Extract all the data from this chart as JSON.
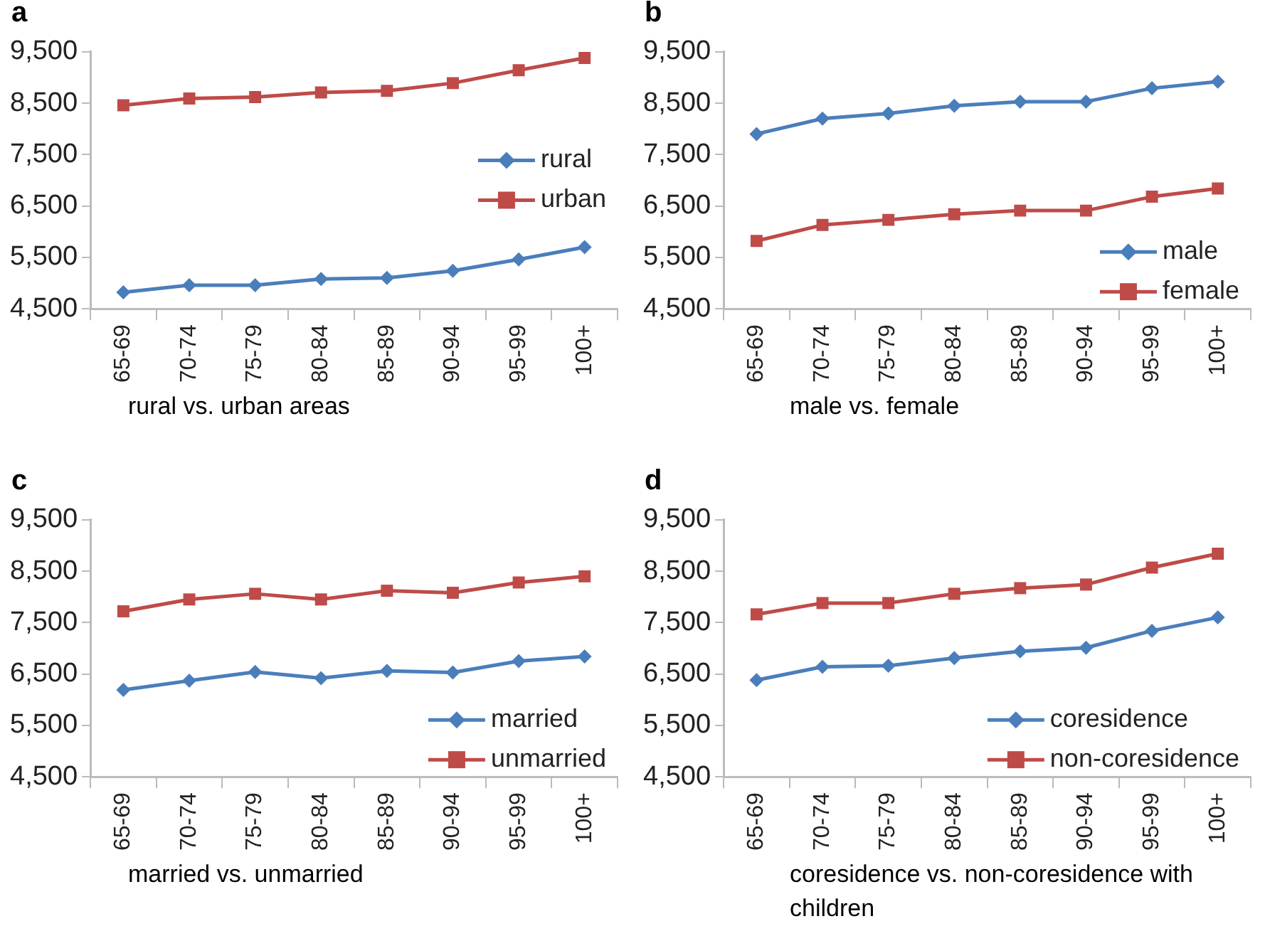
{
  "chart_data": [
    {
      "type": "line",
      "title": "a",
      "xlabel": "rural vs. urban areas",
      "categories": [
        "65-69",
        "70-74",
        "75-79",
        "80-84",
        "85-89",
        "90-94",
        "95-99",
        "100+"
      ],
      "ylim": [
        4500,
        9500
      ],
      "yticks": [
        {
          "value": 4500,
          "label": "4,500"
        },
        {
          "value": 5500,
          "label": "5,500"
        },
        {
          "value": 6500,
          "label": "6,500"
        },
        {
          "value": 7500,
          "label": "7,500"
        },
        {
          "value": 8500,
          "label": "8,500"
        },
        {
          "value": 9500,
          "label": "9,500"
        }
      ],
      "grid": false,
      "legend": "right",
      "series": [
        {
          "name": "rural",
          "color": "#4a7ebb",
          "marker": "diamond",
          "values": [
            4820,
            4960,
            4960,
            5080,
            5100,
            5240,
            5460,
            5700
          ]
        },
        {
          "name": "urban",
          "color": "#be4b48",
          "marker": "square",
          "values": [
            8460,
            8590,
            8620,
            8710,
            8740,
            8890,
            9140,
            9380
          ]
        }
      ]
    },
    {
      "type": "line",
      "title": "b",
      "xlabel": "male vs. female",
      "categories": [
        "65-69",
        "70-74",
        "75-79",
        "80-84",
        "85-89",
        "90-94",
        "95-99",
        "100+"
      ],
      "ylim": [
        4500,
        9500
      ],
      "yticks": [
        {
          "value": 4500,
          "label": "4,500"
        },
        {
          "value": 5500,
          "label": "5,500"
        },
        {
          "value": 6500,
          "label": "6,500"
        },
        {
          "value": 7500,
          "label": "7,500"
        },
        {
          "value": 8500,
          "label": "8,500"
        },
        {
          "value": 9500,
          "label": "9,500"
        }
      ],
      "grid": false,
      "legend": "bottom right",
      "series": [
        {
          "name": "male",
          "color": "#4a7ebb",
          "marker": "diamond",
          "values": [
            7900,
            8200,
            8300,
            8450,
            8530,
            8530,
            8790,
            8920
          ]
        },
        {
          "name": "female",
          "color": "#be4b48",
          "marker": "square",
          "values": [
            5820,
            6130,
            6230,
            6340,
            6410,
            6410,
            6680,
            6840
          ]
        }
      ]
    },
    {
      "type": "line",
      "title": "c",
      "xlabel": "married vs. unmarried",
      "categories": [
        "65-69",
        "70-74",
        "75-79",
        "80-84",
        "85-89",
        "90-94",
        "95-99",
        "100+"
      ],
      "ylim": [
        4500,
        9500
      ],
      "yticks": [
        {
          "value": 4500,
          "label": "4,500"
        },
        {
          "value": 5500,
          "label": "5,500"
        },
        {
          "value": 6500,
          "label": "6,500"
        },
        {
          "value": 7500,
          "label": "7,500"
        },
        {
          "value": 8500,
          "label": "8,500"
        },
        {
          "value": 9500,
          "label": "9,500"
        }
      ],
      "grid": false,
      "legend": "bottom right",
      "series": [
        {
          "name": "married",
          "color": "#4a7ebb",
          "marker": "diamond",
          "values": [
            6190,
            6370,
            6540,
            6420,
            6560,
            6530,
            6750,
            6840
          ]
        },
        {
          "name": "unmarried",
          "color": "#be4b48",
          "marker": "square",
          "values": [
            7720,
            7950,
            8060,
            7950,
            8120,
            8080,
            8280,
            8400
          ]
        }
      ]
    },
    {
      "type": "line",
      "title": "d",
      "xlabel": "coresidence vs. non-coresidence with children",
      "categories": [
        "65-69",
        "70-74",
        "75-79",
        "80-84",
        "85-89",
        "90-94",
        "95-99",
        "100+"
      ],
      "ylim": [
        4500,
        9500
      ],
      "yticks": [
        {
          "value": 4500,
          "label": "4,500"
        },
        {
          "value": 5500,
          "label": "5,500"
        },
        {
          "value": 6500,
          "label": "6,500"
        },
        {
          "value": 7500,
          "label": "7,500"
        },
        {
          "value": 8500,
          "label": "8,500"
        },
        {
          "value": 9500,
          "label": "9,500"
        }
      ],
      "grid": false,
      "legend": "bottom right",
      "series": [
        {
          "name": "coresidence",
          "color": "#4a7ebb",
          "marker": "diamond",
          "values": [
            6380,
            6640,
            6660,
            6810,
            6940,
            7010,
            7340,
            7600
          ]
        },
        {
          "name": "non-coresidence",
          "color": "#be4b48",
          "marker": "square",
          "values": [
            7660,
            7880,
            7880,
            8060,
            8170,
            8240,
            8570,
            8840
          ]
        }
      ]
    }
  ]
}
